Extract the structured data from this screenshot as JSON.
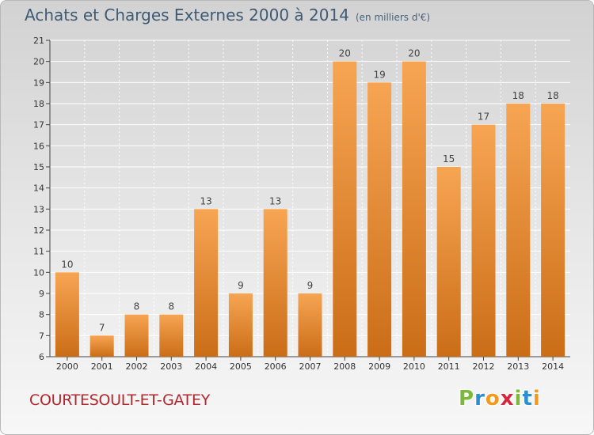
{
  "header": {
    "title": "Achats et Charges Externes 2000 à 2014",
    "unit": "(en milliers d'€)"
  },
  "footer": {
    "commune": "COURTESOULT-ET-GATEY",
    "brand_letters": [
      "P",
      "r",
      "o",
      "x",
      "i",
      "t",
      "i"
    ]
  },
  "colors": {
    "brand_letters": [
      "#7cb83a",
      "#2b8fd0",
      "#f39a1e",
      "#d6273b",
      "#7cb83a",
      "#2b8fd0",
      "#f39a1e"
    ],
    "bar_light": "#f7a553",
    "bar_dark": "#cb6d17"
  },
  "chart_data": {
    "type": "bar",
    "title": "Achats et Charges Externes 2000 à 2014",
    "subtitle": "(en milliers d'€)",
    "categories": [
      "2000",
      "2001",
      "2002",
      "2003",
      "2004",
      "2005",
      "2006",
      "2007",
      "2008",
      "2009",
      "2010",
      "2011",
      "2012",
      "2013",
      "2014"
    ],
    "values": [
      10,
      7,
      8,
      8,
      13,
      9,
      13,
      9,
      20,
      19,
      20,
      15,
      17,
      18,
      18
    ],
    "ylim": [
      6,
      21
    ],
    "yticks": [
      6,
      7,
      8,
      9,
      10,
      11,
      12,
      13,
      14,
      15,
      16,
      17,
      18,
      19,
      20,
      21
    ],
    "grid": true,
    "data_labels": true
  }
}
